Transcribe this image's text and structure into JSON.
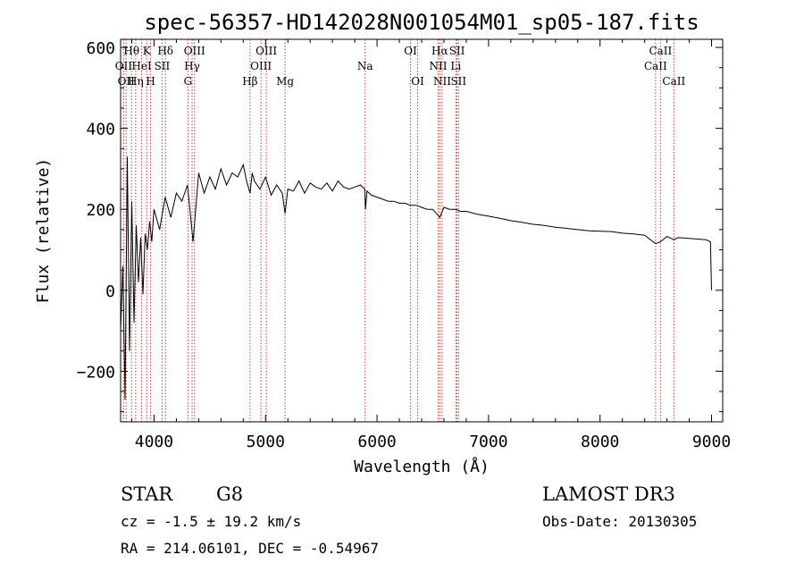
{
  "chart_data": {
    "type": "line",
    "title": "spec-56357-HD142028N001054M01_sp05-187.fits",
    "xlabel": "Wavelength (Å)",
    "ylabel": "Flux (relative)",
    "xlim": [
      3700,
      9100
    ],
    "ylim": [
      -325,
      620
    ],
    "xticks": [
      4000,
      5000,
      6000,
      7000,
      8000,
      9000
    ],
    "yticks": [
      -200,
      0,
      200,
      400,
      600
    ],
    "series": [
      {
        "name": "spectrum",
        "x": [
          3700,
          3720,
          3740,
          3760,
          3780,
          3800,
          3820,
          3840,
          3860,
          3880,
          3900,
          3920,
          3940,
          3960,
          3980,
          4000,
          4050,
          4100,
          4150,
          4200,
          4250,
          4300,
          4350,
          4400,
          4450,
          4500,
          4550,
          4600,
          4650,
          4700,
          4750,
          4800,
          4830,
          4861,
          4880,
          4900,
          4950,
          5000,
          5050,
          5100,
          5150,
          5175,
          5200,
          5250,
          5300,
          5350,
          5400,
          5450,
          5500,
          5550,
          5600,
          5650,
          5700,
          5750,
          5800,
          5850,
          5890,
          5896,
          5910,
          5950,
          6000,
          6050,
          6100,
          6150,
          6200,
          6250,
          6300,
          6350,
          6400,
          6450,
          6500,
          6563,
          6600,
          6650,
          6700,
          6750,
          6800,
          6900,
          7000,
          7100,
          7200,
          7300,
          7400,
          7500,
          7600,
          7700,
          7800,
          7900,
          8000,
          8100,
          8200,
          8300,
          8400,
          8498,
          8542,
          8600,
          8662,
          8700,
          8800,
          8900,
          8950,
          8990,
          9000
        ],
        "y": [
          -100,
          60,
          -270,
          330,
          -150,
          220,
          -80,
          160,
          20,
          130,
          -10,
          140,
          100,
          170,
          120,
          200,
          150,
          230,
          180,
          240,
          220,
          260,
          120,
          290,
          240,
          280,
          250,
          300,
          260,
          290,
          280,
          310,
          270,
          240,
          290,
          270,
          250,
          280,
          235,
          260,
          240,
          190,
          250,
          245,
          270,
          240,
          265,
          255,
          250,
          265,
          245,
          270,
          255,
          250,
          255,
          260,
          250,
          200,
          245,
          235,
          230,
          225,
          220,
          220,
          215,
          215,
          210,
          210,
          205,
          200,
          200,
          180,
          205,
          200,
          200,
          195,
          195,
          188,
          183,
          178,
          172,
          168,
          163,
          160,
          156,
          153,
          150,
          147,
          146,
          145,
          141,
          139,
          136,
          115,
          120,
          133,
          125,
          130,
          128,
          126,
          125,
          120,
          0
        ]
      }
    ],
    "line_markers": [
      {
        "wavelength": 3727,
        "label": "OII",
        "row": 2
      },
      {
        "wavelength": 3750,
        "label": "OII",
        "row": 3
      },
      {
        "wavelength": 3798,
        "label": "Hθ",
        "row": 1
      },
      {
        "wavelength": 3835,
        "label": "Hη",
        "row": 3
      },
      {
        "wavelength": 3889,
        "label": "HeI",
        "row": 2
      },
      {
        "wavelength": 3934,
        "label": "K",
        "row": 1
      },
      {
        "wavelength": 3969,
        "label": "H",
        "row": 3
      },
      {
        "wavelength": 4072,
        "label": "SII",
        "row": 2
      },
      {
        "wavelength": 4102,
        "label": "Hδ",
        "row": 1
      },
      {
        "wavelength": 4304,
        "label": "G",
        "row": 3
      },
      {
        "wavelength": 4341,
        "label": "Hγ",
        "row": 2
      },
      {
        "wavelength": 4363,
        "label": "OIII",
        "row": 1
      },
      {
        "wavelength": 4861,
        "label": "Hβ",
        "row": 3
      },
      {
        "wavelength": 4959,
        "label": "OIII",
        "row": 2
      },
      {
        "wavelength": 5007,
        "label": "OIII",
        "row": 1
      },
      {
        "wavelength": 5175,
        "label": "Mg",
        "row": 3
      },
      {
        "wavelength": 5893,
        "label": "Na",
        "row": 2
      },
      {
        "wavelength": 6300,
        "label": "OI",
        "row": 1
      },
      {
        "wavelength": 6364,
        "label": "OI",
        "row": 3
      },
      {
        "wavelength": 6548,
        "label": "NII",
        "row": 2
      },
      {
        "wavelength": 6563,
        "label": "Hα",
        "row": 1
      },
      {
        "wavelength": 6584,
        "label": "NII",
        "row": 3
      },
      {
        "wavelength": 6707,
        "label": "Li",
        "row": 2
      },
      {
        "wavelength": 6717,
        "label": "SII",
        "row": 1
      },
      {
        "wavelength": 6731,
        "label": "SII",
        "row": 3
      },
      {
        "wavelength": 8498,
        "label": "CaII",
        "row": 2
      },
      {
        "wavelength": 8542,
        "label": "CaII",
        "row": 1
      },
      {
        "wavelength": 8662,
        "label": "CaII",
        "row": 3
      }
    ],
    "colors": {
      "spectrum": "#000000",
      "line_markers": "#d23c3c",
      "axes": "#000000",
      "background": "#ffffff"
    }
  },
  "info": {
    "object_class": "STAR",
    "subclass": "G8",
    "survey": "LAMOST DR3",
    "redshift_text": "cz = -1.5 ± 19.2 km/s",
    "obs_date_text": "Obs-Date: 20130305",
    "coords_text": "RA = 214.06101, DEC =  -0.54967"
  }
}
